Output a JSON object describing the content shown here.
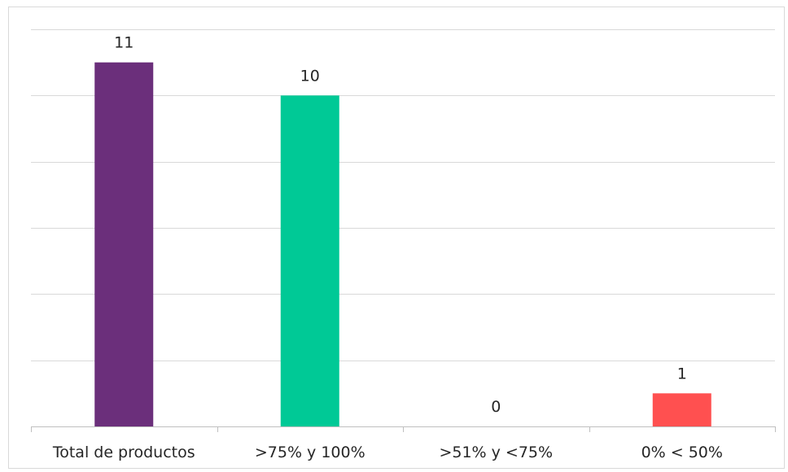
{
  "chart_data": {
    "type": "bar",
    "title": "",
    "xlabel": "",
    "ylabel": "",
    "categories": [
      "Total de productos",
      ">75% y 100%",
      ">51% y <75%",
      "0% < 50%"
    ],
    "values": [
      11,
      10,
      0,
      1
    ],
    "data_labels": [
      "11",
      "10",
      "0",
      "1"
    ],
    "colors": [
      "#6b2f7b",
      "#00c996",
      "#7f7f7f",
      "#ff5050"
    ],
    "ylim": [
      0,
      12
    ],
    "y_gridlines": [
      2,
      4,
      6,
      8,
      10,
      12
    ],
    "grid": true,
    "legend": "none"
  }
}
